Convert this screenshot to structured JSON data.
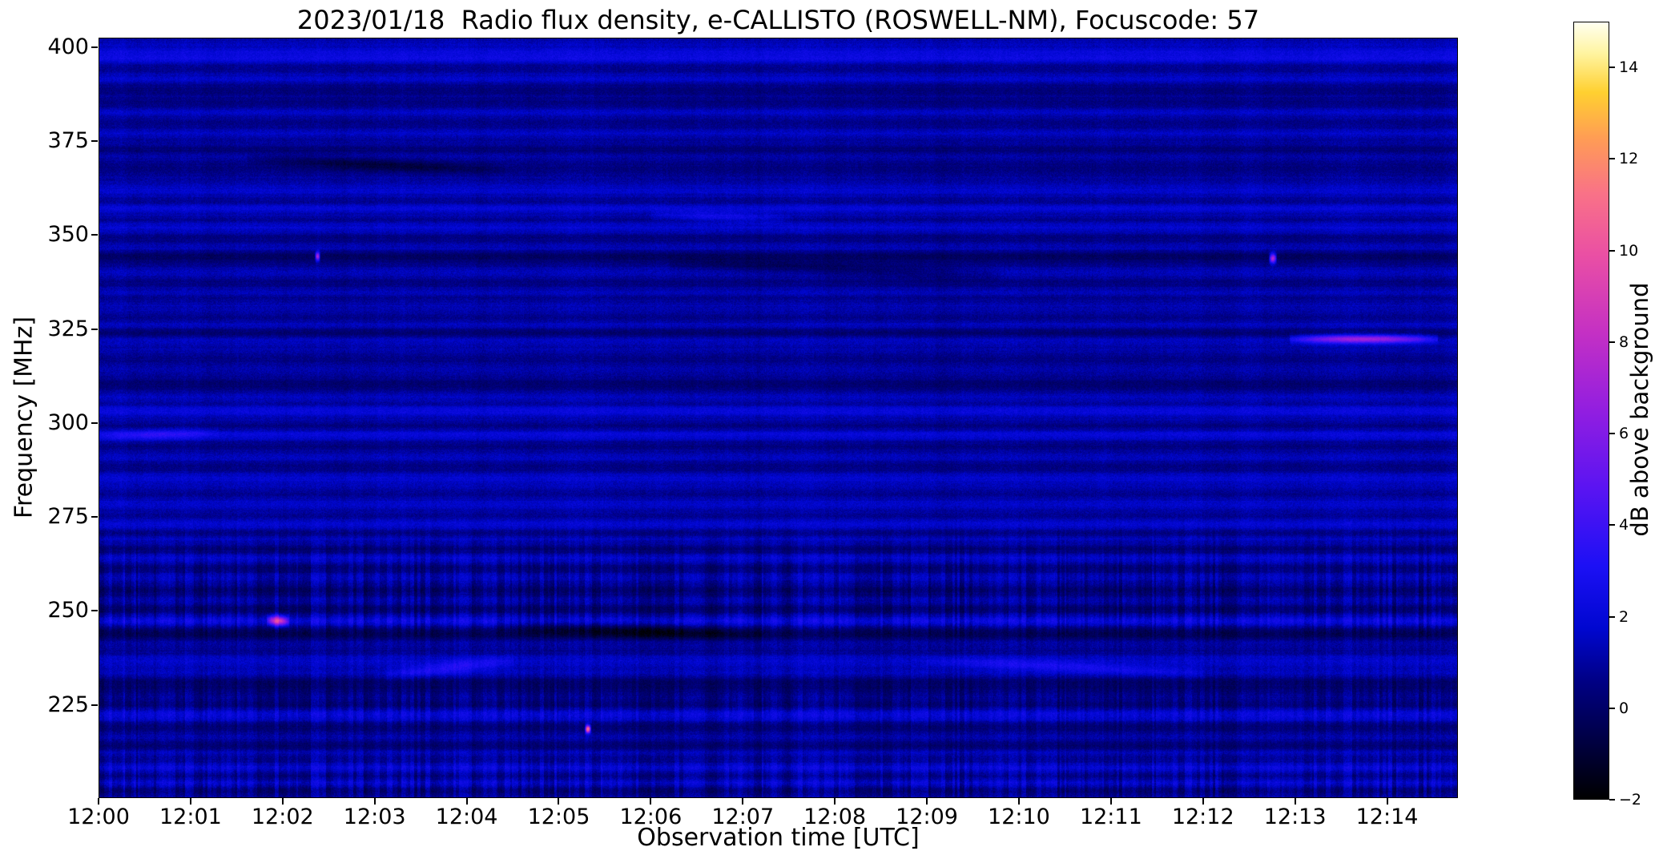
{
  "chart_data": {
    "type": "heatmap",
    "title": "2023/01/18  Radio flux density, e-CALLISTO (ROSWELL-NM), Focuscode: 57",
    "xlabel": "Observation time [UTC]",
    "ylabel": "Frequency [MHz]",
    "x_tick_labels": [
      "12:00",
      "12:01",
      "12:02",
      "12:03",
      "12:04",
      "12:05",
      "12:06",
      "12:07",
      "12:08",
      "12:09",
      "12:10",
      "12:11",
      "12:12",
      "12:13",
      "12:14"
    ],
    "x_range_minutes": [
      0,
      14.77
    ],
    "y_tick_values": [
      400,
      375,
      350,
      325,
      300,
      275,
      250,
      225
    ],
    "y_range_mhz": [
      200.2,
      402.5
    ],
    "grid": false,
    "colorbar": {
      "label": "dB above background",
      "tick_values": [
        14,
        12,
        10,
        8,
        6,
        4,
        2,
        0,
        -2
      ],
      "tick_labels": [
        "14",
        "12",
        "10",
        "8",
        "6",
        "4",
        "2",
        "0",
        "−2"
      ],
      "range": [
        -2,
        15
      ],
      "gradient_stops": [
        {
          "pos": 0.0,
          "color": "#000000"
        },
        {
          "pos": 0.09,
          "color": "#000050"
        },
        {
          "pos": 0.15,
          "color": "#000083"
        },
        {
          "pos": 0.22,
          "color": "#0007d0"
        },
        {
          "pos": 0.3,
          "color": "#1c10f5"
        },
        {
          "pos": 0.4,
          "color": "#5a14f2"
        },
        {
          "pos": 0.5,
          "color": "#921ee0"
        },
        {
          "pos": 0.6,
          "color": "#c430c4"
        },
        {
          "pos": 0.7,
          "color": "#ea4fa4"
        },
        {
          "pos": 0.78,
          "color": "#f97287"
        },
        {
          "pos": 0.85,
          "color": "#ff9c55"
        },
        {
          "pos": 0.91,
          "color": "#ffd030"
        },
        {
          "pos": 0.96,
          "color": "#fff4a0"
        },
        {
          "pos": 1.0,
          "color": "#fffff0"
        }
      ]
    },
    "spectrogram": {
      "description": "Quiet solar radio spectrogram: dark-blue background near 0-2 dB, horizontal receiver bands, broadband vertical interference striping below ~272 MHz, few narrowband RFI bursts",
      "base_level_db": 0.9,
      "noise_db": 0.45,
      "stripe_base": 0.18,
      "stripe_max_freq": 272,
      "stripe_rows": [
        {
          "freq": 256,
          "amp": 0.5,
          "width": 8
        },
        {
          "freq": 247,
          "amp": 0.3,
          "width": 2
        },
        {
          "freq": 225,
          "amp": 0.45,
          "width": 5
        },
        {
          "freq": 207,
          "amp": 0.5,
          "width": 4
        },
        {
          "freq": 202,
          "amp": 0.4,
          "width": 2
        }
      ],
      "bands": [
        {
          "f": 399,
          "a": 0.9,
          "w": 1.5
        },
        {
          "f": 397,
          "a": 1.0,
          "w": 1.2
        },
        {
          "f": 395,
          "a": -0.5,
          "w": 0.8
        },
        {
          "f": 392,
          "a": 0.5,
          "w": 1.0
        },
        {
          "f": 389,
          "a": -0.6,
          "w": 1.0
        },
        {
          "f": 385,
          "a": -0.4,
          "w": 0.8
        },
        {
          "f": 383,
          "a": 0.8,
          "w": 1.2
        },
        {
          "f": 380,
          "a": -0.4,
          "w": 0.8
        },
        {
          "f": 377,
          "a": 0.5,
          "w": 1.0
        },
        {
          "f": 373,
          "a": -0.5,
          "w": 0.8
        },
        {
          "f": 368,
          "a": -0.6,
          "w": 1.2
        },
        {
          "f": 362,
          "a": 0.9,
          "w": 1.3
        },
        {
          "f": 359,
          "a": -0.4,
          "w": 0.7
        },
        {
          "f": 357,
          "a": 0.8,
          "w": 1.2
        },
        {
          "f": 354,
          "a": -0.5,
          "w": 0.7
        },
        {
          "f": 352,
          "a": 0.6,
          "w": 1.0
        },
        {
          "f": 349,
          "a": -0.5,
          "w": 0.8
        },
        {
          "f": 347,
          "a": 0.5,
          "w": 0.8
        },
        {
          "f": 344,
          "a": -0.9,
          "w": 1.2
        },
        {
          "f": 340,
          "a": 0.4,
          "w": 1.0
        },
        {
          "f": 337,
          "a": -0.5,
          "w": 0.8
        },
        {
          "f": 335,
          "a": 0.7,
          "w": 1.2
        },
        {
          "f": 333,
          "a": -0.4,
          "w": 0.7
        },
        {
          "f": 331,
          "a": 0.5,
          "w": 1.0
        },
        {
          "f": 328,
          "a": -0.5,
          "w": 0.7
        },
        {
          "f": 326,
          "a": 0.8,
          "w": 0.9
        },
        {
          "f": 324,
          "a": -0.8,
          "w": 0.9
        },
        {
          "f": 322,
          "a": 0.6,
          "w": 0.9
        },
        {
          "f": 317,
          "a": -0.5,
          "w": 1.2
        },
        {
          "f": 314,
          "a": 0.4,
          "w": 1.5
        },
        {
          "f": 310,
          "a": -0.6,
          "w": 1.5
        },
        {
          "f": 307,
          "a": 0.5,
          "w": 1.0
        },
        {
          "f": 305,
          "a": -0.4,
          "w": 0.7
        },
        {
          "f": 303,
          "a": 0.9,
          "w": 1.2
        },
        {
          "f": 299,
          "a": -0.6,
          "w": 0.8
        },
        {
          "f": 297,
          "a": 1.0,
          "w": 1.2
        },
        {
          "f": 294,
          "a": -0.5,
          "w": 1.0
        },
        {
          "f": 291,
          "a": 0.5,
          "w": 1.0
        },
        {
          "f": 288,
          "a": -0.4,
          "w": 0.8
        },
        {
          "f": 285,
          "a": 0.7,
          "w": 1.2
        },
        {
          "f": 281,
          "a": -0.4,
          "w": 0.8
        },
        {
          "f": 278,
          "a": 0.5,
          "w": 1.0
        },
        {
          "f": 275,
          "a": -0.5,
          "w": 0.7
        },
        {
          "f": 273,
          "a": 1.0,
          "w": 1.5
        },
        {
          "f": 271,
          "a": -0.6,
          "w": 0.8
        },
        {
          "f": 269,
          "a": 0.6,
          "w": 0.8
        },
        {
          "f": 266,
          "a": -0.7,
          "w": 1.0
        },
        {
          "f": 264,
          "a": 0.7,
          "w": 0.9
        },
        {
          "f": 261,
          "a": -0.6,
          "w": 0.9
        },
        {
          "f": 259,
          "a": 0.6,
          "w": 0.9
        },
        {
          "f": 255,
          "a": -0.9,
          "w": 1.2
        },
        {
          "f": 253,
          "a": 0.5,
          "w": 0.8
        },
        {
          "f": 250,
          "a": -0.7,
          "w": 0.9
        },
        {
          "f": 247,
          "a": 1.2,
          "w": 1.2
        },
        {
          "f": 244,
          "a": -1.1,
          "w": 1.5
        },
        {
          "f": 241,
          "a": 0.5,
          "w": 0.8
        },
        {
          "f": 239,
          "a": -0.6,
          "w": 0.9
        },
        {
          "f": 237,
          "a": 0.8,
          "w": 1.5
        },
        {
          "f": 233,
          "a": 0.6,
          "w": 1.0
        },
        {
          "f": 230,
          "a": -0.9,
          "w": 2.0
        },
        {
          "f": 225,
          "a": -0.6,
          "w": 1.0
        },
        {
          "f": 222,
          "a": 1.1,
          "w": 1.3
        },
        {
          "f": 219,
          "a": -0.7,
          "w": 1.2
        },
        {
          "f": 216,
          "a": 0.5,
          "w": 0.9
        },
        {
          "f": 214,
          "a": -0.8,
          "w": 1.0
        },
        {
          "f": 212,
          "a": 0.6,
          "w": 0.8
        },
        {
          "f": 210,
          "a": -0.5,
          "w": 0.7
        },
        {
          "f": 208,
          "a": 1.0,
          "w": 1.2
        },
        {
          "f": 206,
          "a": -0.6,
          "w": 0.8
        },
        {
          "f": 204,
          "a": 0.8,
          "w": 1.0
        },
        {
          "f": 202,
          "a": -0.5,
          "w": 0.8
        }
      ],
      "features": [
        {
          "t0": 1.82,
          "t1": 2.06,
          "f0": 247.5,
          "f1": 247.2,
          "amp": 7.5,
          "width": 0.9
        },
        {
          "t0": 2.34,
          "t1": 2.4,
          "f0": 344.5,
          "f1": 344.5,
          "amp": 7.5,
          "width": 0.8
        },
        {
          "t0": 12.72,
          "t1": 12.8,
          "f0": 344.0,
          "f1": 344.0,
          "amp": 7.5,
          "width": 0.9
        },
        {
          "t0": 12.95,
          "t1": 14.55,
          "f0": 322.5,
          "f1": 322.5,
          "amp": 5.5,
          "width": 0.8
        },
        {
          "t0": 5.28,
          "t1": 5.34,
          "f0": 218.5,
          "f1": 218.5,
          "amp": 11.0,
          "width": 0.7
        },
        {
          "t0": 3.1,
          "t1": 4.5,
          "f0": 233.0,
          "f1": 236.5,
          "amp": 1.8,
          "width": 1.2
        },
        {
          "t0": 1.6,
          "t1": 4.4,
          "f0": 370.5,
          "f1": 367.5,
          "amp": -1.4,
          "width": 1.1
        },
        {
          "t0": 6.2,
          "t1": 9.8,
          "f0": 342.5,
          "f1": 339.5,
          "amp": -1.2,
          "width": 1.2
        },
        {
          "t0": 0.0,
          "t1": 1.3,
          "f0": 296.5,
          "f1": 297.5,
          "amp": 1.6,
          "width": 1.0
        },
        {
          "t0": 4.3,
          "t1": 7.2,
          "f0": 246.0,
          "f1": 243.5,
          "amp": -1.3,
          "width": 1.3
        },
        {
          "t0": 9.0,
          "t1": 12.0,
          "f0": 236.5,
          "f1": 233.5,
          "amp": 1.5,
          "width": 1.0
        },
        {
          "t0": 6.0,
          "t1": 7.5,
          "f0": 355.5,
          "f1": 354.5,
          "amp": 1.5,
          "width": 0.9
        }
      ]
    }
  }
}
